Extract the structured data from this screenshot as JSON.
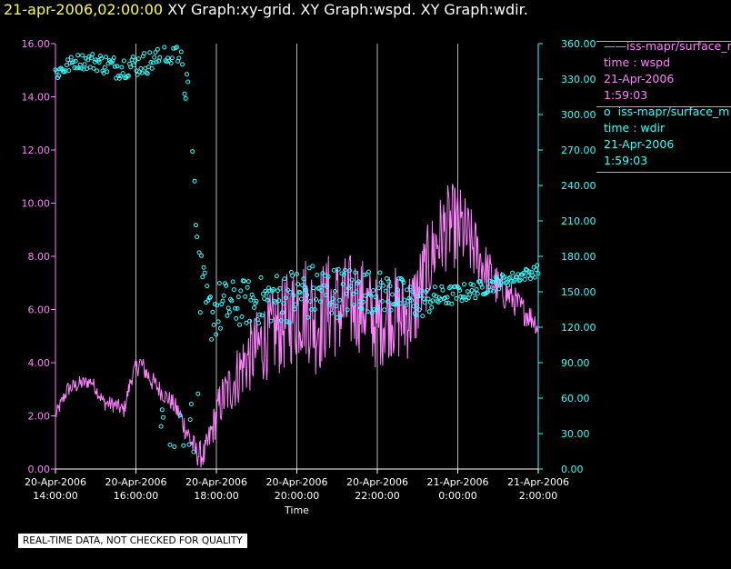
{
  "header": {
    "date": "21-apr-2006,02:00:00",
    "graphs": "XY Graph:xy-grid.  XY Graph:wspd.  XY Graph:wdir."
  },
  "legend": {
    "series1": {
      "symbol": "——",
      "name": "iss-mapr/surface_m",
      "var": "time : wspd",
      "date": "21-Apr-2006",
      "time": "1:59:03"
    },
    "series2": {
      "symbol": "o",
      "name": "iss-mapr/surface_m",
      "var": "time : wdir",
      "date": "21-Apr-2006",
      "time": "1:59:03"
    }
  },
  "notice": "REAL-TIME DATA, NOT CHECKED FOR QUALITY",
  "colors": {
    "wspd": "#ff80ff",
    "wdir": "#33ffff",
    "grid": "#b8b8b8",
    "background": "#000000"
  },
  "chart_data": {
    "type": "line+scatter",
    "xlabel": "Time",
    "xlim_hours": [
      14.0,
      26.0
    ],
    "x_ticks": [
      {
        "h": 14,
        "l1": "20-Apr-2006",
        "l2": "14:00:00"
      },
      {
        "h": 16,
        "l1": "20-Apr-2006",
        "l2": "16:00:00"
      },
      {
        "h": 18,
        "l1": "20-Apr-2006",
        "l2": "18:00:00"
      },
      {
        "h": 20,
        "l1": "20-Apr-2006",
        "l2": "20:00:00"
      },
      {
        "h": 22,
        "l1": "20-Apr-2006",
        "l2": "22:00:00"
      },
      {
        "h": 24,
        "l1": "21-Apr-2006",
        "l2": "0:00:00"
      },
      {
        "h": 26,
        "l1": "21-Apr-2006",
        "l2": "2:00:00"
      }
    ],
    "left_axis": {
      "name": "wspd",
      "ylim": [
        0,
        16
      ],
      "ticks": [
        "0.00",
        "2.00",
        "4.00",
        "6.00",
        "8.00",
        "10.00",
        "12.00",
        "14.00",
        "16.00"
      ]
    },
    "right_axis": {
      "name": "wdir",
      "ylim": [
        0,
        360
      ],
      "ticks": [
        "0.00",
        "30.00",
        "60.00",
        "90.00",
        "120.00",
        "150.00",
        "180.00",
        "210.00",
        "240.00",
        "270.00",
        "300.00",
        "330.00",
        "360.00"
      ]
    },
    "series": [
      {
        "name": "wspd",
        "style": "line",
        "axis": "left",
        "x": [
          14.0,
          14.3,
          14.6,
          14.9,
          15.2,
          15.5,
          15.7,
          15.9,
          16.1,
          16.4,
          16.7,
          16.9,
          17.1,
          17.3,
          17.5,
          17.7,
          17.9,
          18.1,
          18.4,
          18.7,
          19.0,
          19.3,
          19.6,
          19.9,
          20.2,
          20.5,
          20.8,
          21.1,
          21.4,
          21.7,
          22.0,
          22.3,
          22.6,
          22.9,
          23.2,
          23.5,
          23.8,
          24.1,
          24.4,
          24.7,
          25.0,
          25.3,
          25.6,
          25.9,
          26.0
        ],
        "y": [
          2.0,
          3.0,
          3.2,
          3.3,
          2.5,
          2.4,
          2.2,
          3.5,
          4.0,
          3.3,
          2.8,
          2.5,
          2.0,
          1.3,
          0.6,
          0.5,
          1.5,
          2.5,
          3.2,
          4.0,
          4.5,
          5.0,
          5.3,
          5.8,
          6.2,
          5.5,
          6.2,
          6.0,
          6.3,
          6.1,
          5.4,
          6.0,
          5.7,
          6.0,
          7.4,
          8.6,
          9.2,
          9.0,
          8.3,
          7.5,
          6.8,
          6.5,
          6.0,
          5.6,
          5.3
        ],
        "noise": [
          0.25,
          0.3,
          0.3,
          0.25,
          0.3,
          0.3,
          0.3,
          0.35,
          0.4,
          0.4,
          0.35,
          0.35,
          0.45,
          0.5,
          0.5,
          0.55,
          0.7,
          0.9,
          1.1,
          1.3,
          1.5,
          1.6,
          1.8,
          1.9,
          2.0,
          2.1,
          2.0,
          2.0,
          1.9,
          1.8,
          1.8,
          1.8,
          1.8,
          1.8,
          1.6,
          1.6,
          1.6,
          1.6,
          1.3,
          1.0,
          0.8,
          0.6,
          0.55,
          0.45,
          0.4
        ]
      },
      {
        "name": "wdir",
        "style": "scatter",
        "axis": "right",
        "x": [
          14.0,
          14.5,
          15.0,
          15.5,
          16.0,
          16.4,
          16.8,
          17.0,
          17.15,
          17.3,
          17.45,
          17.6,
          17.8,
          18.0,
          18.5,
          19.0,
          19.5,
          20.0,
          20.5,
          21.0,
          21.5,
          22.0,
          22.5,
          23.0,
          23.5,
          24.0,
          24.5,
          25.0,
          25.5,
          26.0
        ],
        "y": [
          335,
          345,
          345,
          340,
          342,
          345,
          350,
          352,
          345,
          320,
          270,
          150,
          130,
          135,
          140,
          142,
          145,
          148,
          150,
          150,
          152,
          150,
          148,
          140,
          145,
          148,
          152,
          158,
          163,
          168
        ],
        "noise": [
          8,
          6,
          8,
          10,
          10,
          10,
          8,
          8,
          12,
          30,
          40,
          35,
          25,
          25,
          20,
          20,
          22,
          24,
          25,
          22,
          20,
          18,
          16,
          14,
          10,
          8,
          7,
          6,
          5,
          5
        ]
      }
    ]
  }
}
